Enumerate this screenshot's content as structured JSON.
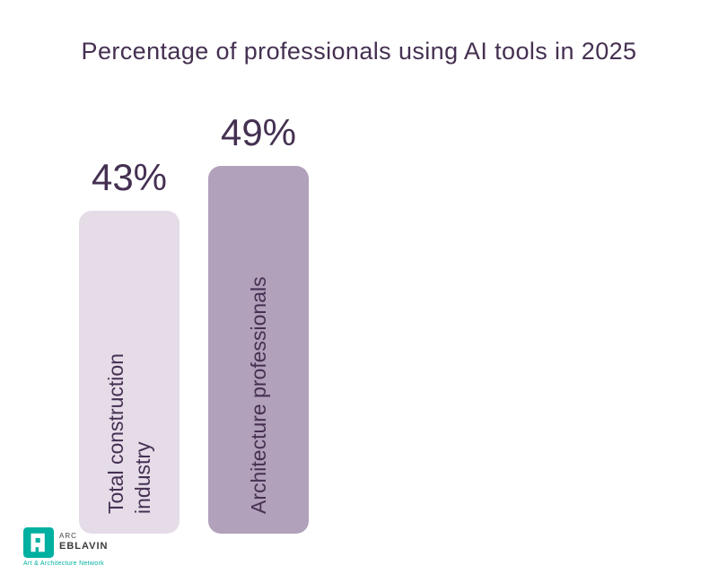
{
  "page": {
    "background": "#ffffff"
  },
  "chart_data": {
    "type": "bar",
    "title": "Percentage of professionals using AI tools in 2025",
    "categories": [
      "Total construction industry",
      "Architecture professionals"
    ],
    "values": [
      43,
      49
    ],
    "value_labels": [
      "43%",
      "49%"
    ],
    "bar_colors": [
      "#e5dce8",
      "#b2a1bb"
    ],
    "text_color": "#453052",
    "ylim": [
      0,
      50
    ],
    "grid": false,
    "legend": false,
    "orientation": "vertical",
    "category_label_position": "inside-rotated"
  },
  "bars": [
    {
      "value_label": "43%",
      "category_lines": [
        "Total construction",
        "industry"
      ]
    },
    {
      "value_label": "49%",
      "category_lines": [
        "Architecture professionals"
      ]
    }
  ],
  "logo": {
    "line1": "ARC",
    "name": "EBLAVIN",
    "tagline": "Art & Architecture Network",
    "accent": "#00b0a0"
  }
}
